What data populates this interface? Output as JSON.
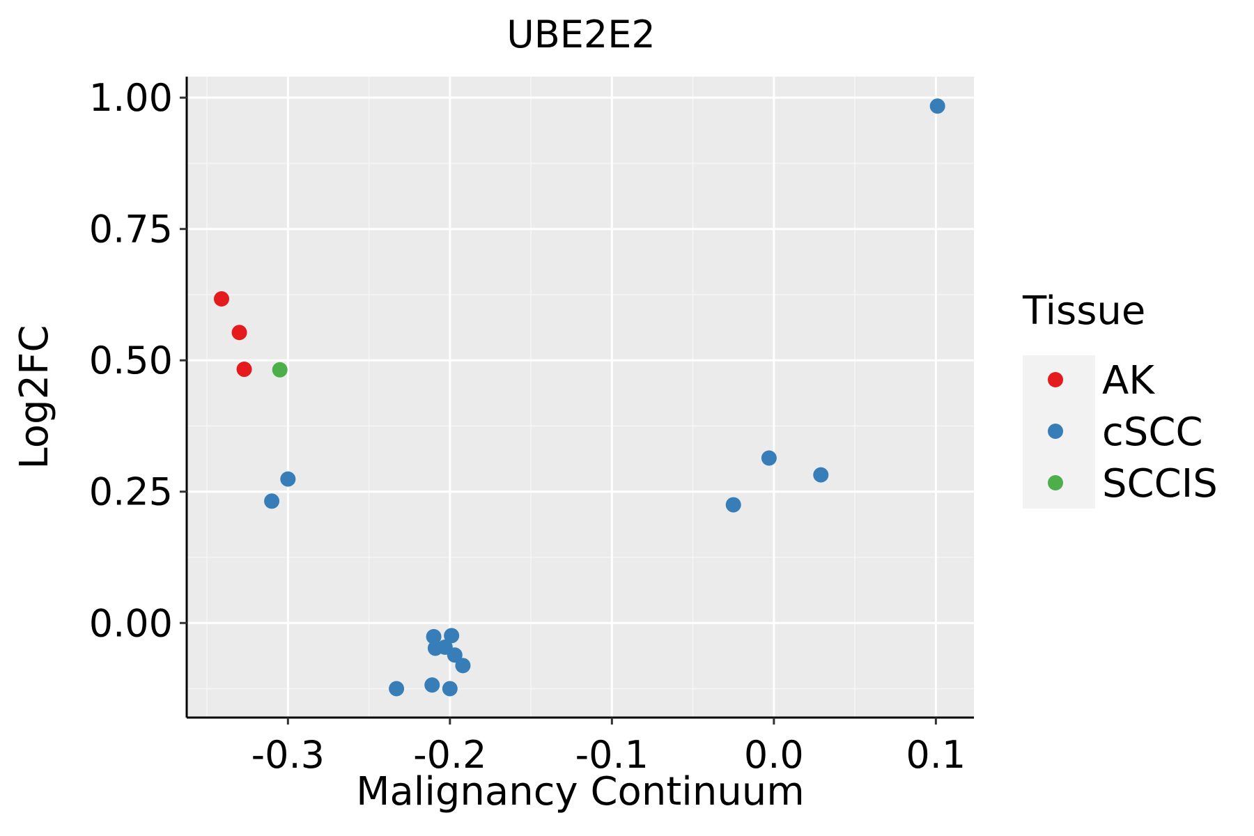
{
  "chart_data": {
    "type": "scatter",
    "title": "UBE2E2",
    "xlabel": "Malignancy Continuum",
    "ylabel": "Log2FC",
    "xlim": [
      -0.3625,
      0.1235
    ],
    "ylim": [
      -0.18,
      1.04
    ],
    "x_ticks": [
      -0.3,
      -0.2,
      -0.1,
      0.0,
      0.1
    ],
    "x_tick_labels": [
      "-0.3",
      "-0.2",
      "-0.1",
      "0.0",
      "0.1"
    ],
    "y_ticks": [
      0.0,
      0.25,
      0.5,
      0.75,
      1.0
    ],
    "y_tick_labels": [
      "0.00",
      "0.25",
      "0.50",
      "0.75",
      "1.00"
    ],
    "grid": true,
    "legend": {
      "title": "Tissue",
      "position": "right",
      "entries": [
        {
          "label": "AK",
          "color": "#e41a1c"
        },
        {
          "label": "cSCC",
          "color": "#377eb8"
        },
        {
          "label": "SCCIS",
          "color": "#4daf4a"
        }
      ]
    },
    "series": [
      {
        "name": "AK",
        "color": "#e41a1c",
        "points": [
          {
            "x": -0.341,
            "y": 0.617
          },
          {
            "x": -0.33,
            "y": 0.553
          },
          {
            "x": -0.327,
            "y": 0.483
          }
        ]
      },
      {
        "name": "cSCC",
        "color": "#377eb8",
        "points": [
          {
            "x": 0.101,
            "y": 0.984
          },
          {
            "x": -0.003,
            "y": 0.314
          },
          {
            "x": 0.029,
            "y": 0.282
          },
          {
            "x": -0.025,
            "y": 0.225
          },
          {
            "x": -0.3,
            "y": 0.274
          },
          {
            "x": -0.31,
            "y": 0.232
          },
          {
            "x": -0.21,
            "y": -0.026
          },
          {
            "x": -0.199,
            "y": -0.024
          },
          {
            "x": -0.209,
            "y": -0.048
          },
          {
            "x": -0.203,
            "y": -0.046
          },
          {
            "x": -0.197,
            "y": -0.061
          },
          {
            "x": -0.192,
            "y": -0.081
          },
          {
            "x": -0.233,
            "y": -0.125
          },
          {
            "x": -0.211,
            "y": -0.118
          },
          {
            "x": -0.2,
            "y": -0.125
          }
        ]
      },
      {
        "name": "SCCIS",
        "color": "#4daf4a",
        "points": [
          {
            "x": -0.305,
            "y": 0.482
          }
        ]
      }
    ],
    "colors": {
      "panel_background": "#ebebeb",
      "grid_major": "#ffffff",
      "grid_minor": "#f5f5f5",
      "axis_line": "#000000",
      "legend_key_background": "#f2f2f2"
    }
  }
}
